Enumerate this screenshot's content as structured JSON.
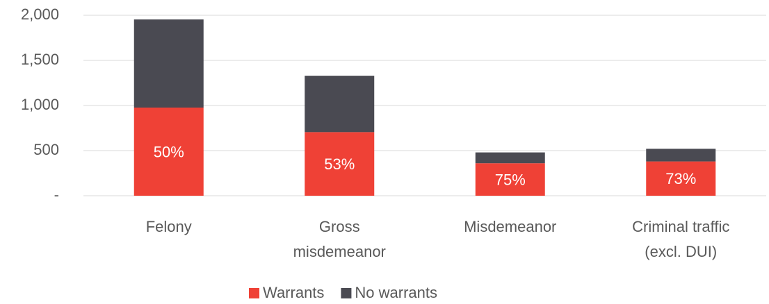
{
  "chart_data": {
    "type": "stacked_bar",
    "categories": [
      [
        "Felony"
      ],
      [
        "Gross",
        "misdemeanor"
      ],
      [
        "Misdemeanor"
      ],
      [
        "Criminal traffic",
        "(excl. DUI)"
      ]
    ],
    "series": [
      {
        "name": "Warrants",
        "color": "#ef4136",
        "values": [
          977,
          705,
          360,
          380
        ]
      },
      {
        "name": "No warrants",
        "color": "#4a4a52",
        "values": [
          977,
          625,
          120,
          140
        ]
      }
    ],
    "warrant_shares": [
      "50%",
      "53%",
      "75%",
      "73%"
    ],
    "ylim": [
      0,
      2000
    ],
    "yticks": [
      {
        "value": 0,
        "label": "-"
      },
      500,
      {
        "value": 1000,
        "label": "1,000"
      },
      {
        "value": 1500,
        "label": "1,500"
      },
      {
        "value": 2000,
        "label": "2,000"
      }
    ],
    "grid": true,
    "legend": "bottom"
  }
}
